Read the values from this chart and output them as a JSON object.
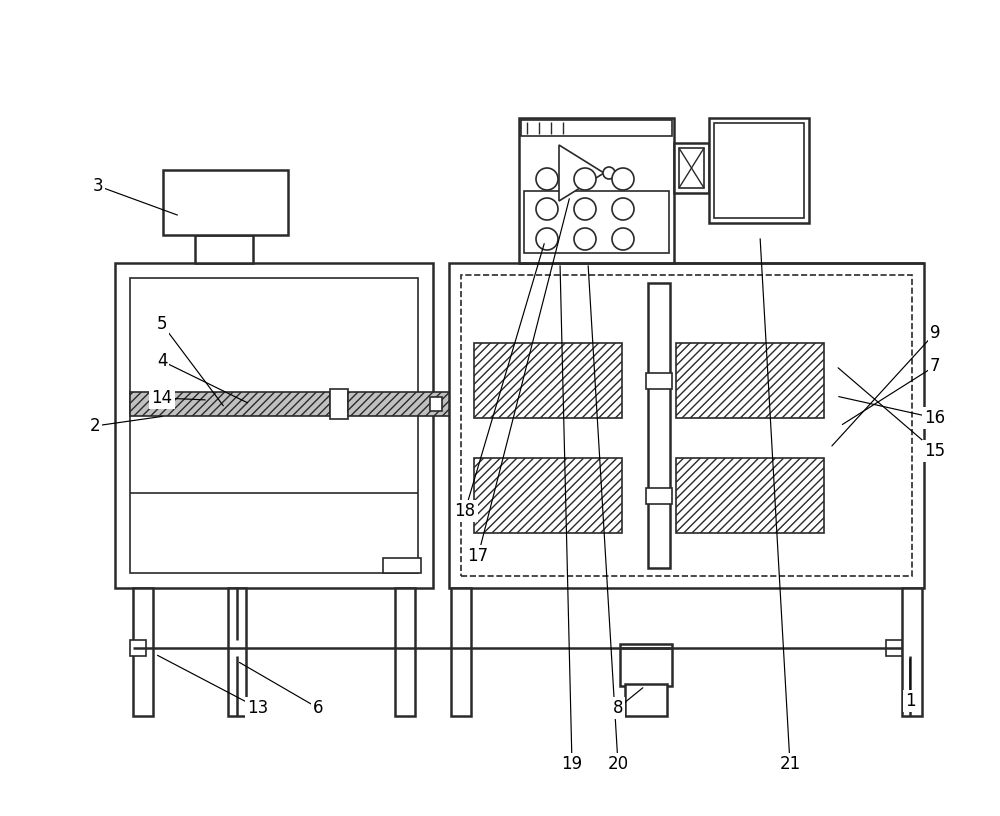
{
  "bg_color": "#ffffff",
  "lc": "#2a2a2a",
  "fig_width": 10.0,
  "fig_height": 8.16,
  "dpi": 100
}
